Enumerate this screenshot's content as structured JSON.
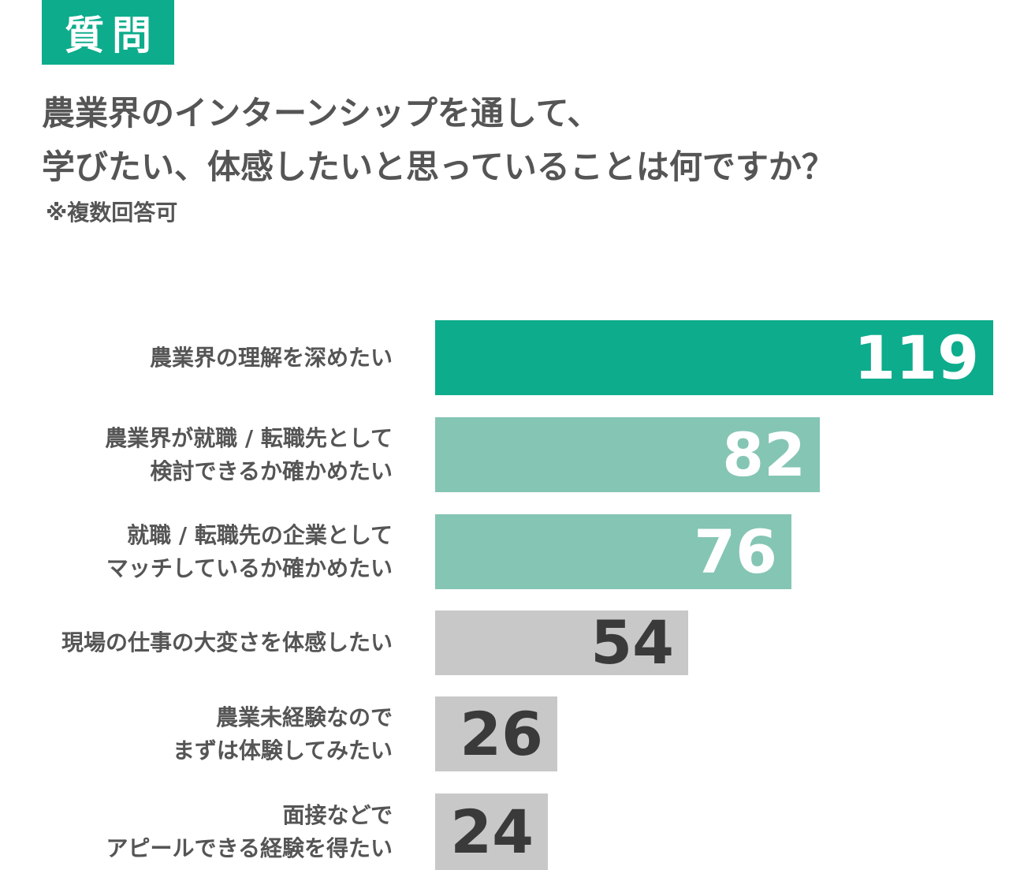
{
  "header": {
    "badge": "質問",
    "question_line1": "農業界のインターンシップを通して、",
    "question_line2": "学びたい、体感したいと思っていることは何ですか？",
    "note": "※複数回答可"
  },
  "colors": {
    "primary": "#0dac8c",
    "secondary": "#85c5b4",
    "tertiary": "#c8c8c8",
    "text": "#555555",
    "value_light": "#ffffff",
    "value_dark": "#3a3a3a"
  },
  "chart_data": {
    "type": "bar",
    "orientation": "horizontal",
    "categories": [
      "農業界の理解を深めたい",
      "農業界が就職 / 転職先として\n検討できるか確かめたい",
      "就職 / 転職先の企業として\nマッチしているか確かめたい",
      "現場の仕事の大変さを体感したい",
      "農業未経験なので\nまずは体験してみたい",
      "面接などで\nアピールできる経験を得たい"
    ],
    "values": [
      119,
      82,
      76,
      54,
      26,
      24
    ],
    "value_labels": [
      "119",
      "82",
      "76",
      "54",
      "26",
      "24"
    ],
    "bar_colors": [
      "#0dac8c",
      "#85c5b4",
      "#85c5b4",
      "#c8c8c8",
      "#c8c8c8",
      "#c8c8c8"
    ],
    "value_colors": [
      "#ffffff",
      "#ffffff",
      "#ffffff",
      "#3a3a3a",
      "#3a3a3a",
      "#3a3a3a"
    ],
    "xlim": [
      0,
      119
    ],
    "grid": false,
    "legend": "none"
  }
}
